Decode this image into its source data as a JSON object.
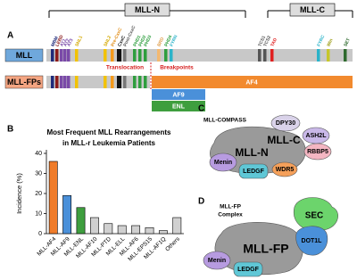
{
  "panel_a": {
    "letter": "A",
    "mll_n": "MLL-N",
    "mll_c": "MLL-C",
    "mll": "MLL",
    "mll_fps": "MLL-FPs",
    "translocation": "Translocation",
    "breakpoints": "Breakpoints",
    "domains": [
      "MBM",
      "LEBD",
      "AT1",
      "AT2",
      "AT3",
      "SNL1",
      "SNL2",
      "Pre-CxxC",
      "CxxC",
      "Post-CxxC",
      "PHD1",
      "PHD2",
      "PHD3",
      "BRD",
      "PHD4",
      "FYRN",
      "TCS1",
      "TCS2",
      "TAD",
      "FYRC",
      "Win",
      "SET"
    ],
    "fusions": [
      "AF4",
      "AF9",
      "ENL"
    ]
  },
  "panel_b": {
    "letter": "B"
  },
  "chart_data": {
    "type": "bar",
    "title": [
      "Most Frequent MLL Rearrangements",
      "in MLL-r Leukemia Patients"
    ],
    "y_label": "Incidence (%)",
    "categories": [
      "MLL-AF4",
      "MLL-AF9",
      "MLL-ENL",
      "MLL-AF10",
      "MLL-PTD",
      "MLL-ELL",
      "MLL-AF6",
      "MLL-EPS15",
      "MLL-AF1Q",
      "Others"
    ],
    "values": [
      36,
      19,
      13,
      8,
      5,
      4,
      4,
      3,
      1.5,
      8
    ],
    "colors": [
      "#f07c2a",
      "#4a90d9",
      "#3e9e3e",
      "#d0d0d0",
      "#d0d0d0",
      "#d0d0d0",
      "#d0d0d0",
      "#d0d0d0",
      "#d0d0d0",
      "#d0d0d0"
    ],
    "ylim": [
      0,
      40
    ],
    "yticks": [
      0,
      10,
      20,
      30,
      40
    ],
    "grid": false
  },
  "panel_c": {
    "letter": "C",
    "title": "MLL-COMPASS",
    "components": [
      "DPY30",
      "ASH2L",
      "MLL-C",
      "RBBP5",
      "MLL-N",
      "WDR5",
      "Menin",
      "LEDGF"
    ]
  },
  "panel_d": {
    "letter": "D",
    "title": [
      "MLL-FP",
      "Complex"
    ],
    "components": [
      "SEC",
      "DOT1L",
      "MLL-FP",
      "Menin",
      "LEDGF"
    ]
  }
}
